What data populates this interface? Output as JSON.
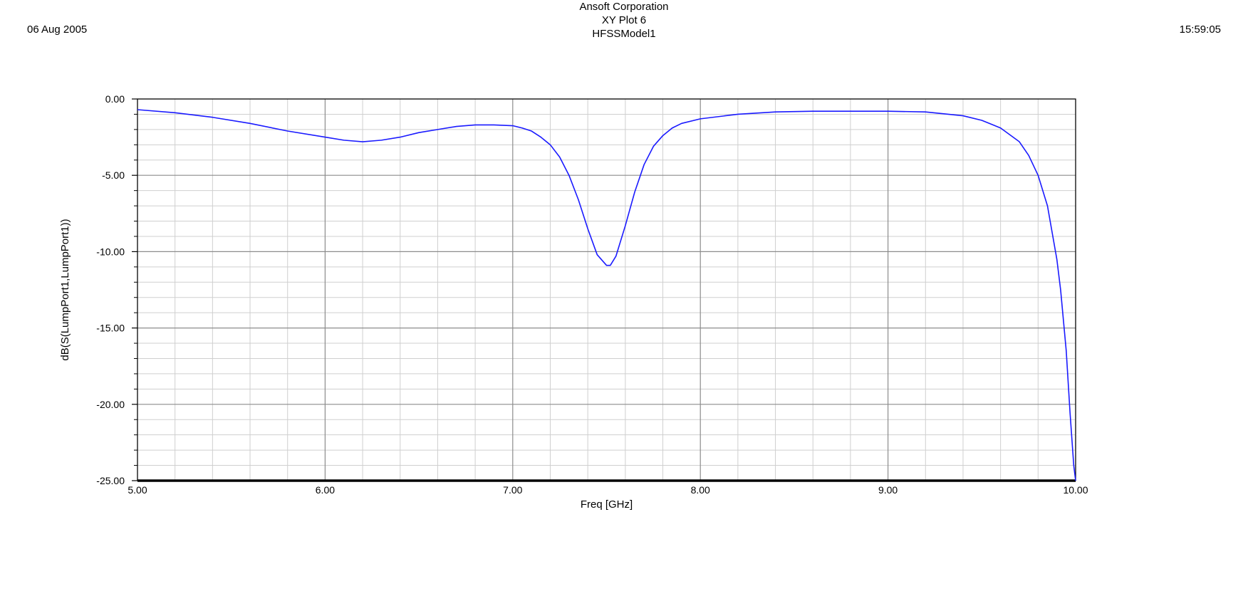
{
  "header": {
    "date": "06 Aug 2005",
    "time": "15:59:05",
    "company": "Ansoft Corporation",
    "plot_name": "XY Plot 6",
    "model_name": "HFSSModel1"
  },
  "chart_data": {
    "type": "line",
    "title": "XY Plot 6",
    "xlabel": "Freq [GHz]",
    "ylabel": "dB(S(LumpPort1,LumpPort1))",
    "xlim": [
      5.0,
      10.0
    ],
    "ylim": [
      -25.0,
      0.0
    ],
    "x_ticks": [
      "5.00",
      "6.00",
      "7.00",
      "8.00",
      "9.00",
      "10.00"
    ],
    "y_ticks": [
      "0.00",
      "-5.00",
      "-10.00",
      "-15.00",
      "-20.00",
      "-25.00"
    ],
    "grid": true,
    "line_color": "#1a1aff",
    "series": [
      {
        "x": [
          5.0,
          5.2,
          5.4,
          5.6,
          5.8,
          6.0,
          6.1,
          6.2,
          6.3,
          6.4,
          6.5,
          6.6,
          6.7,
          6.8,
          6.9,
          7.0,
          7.05,
          7.1,
          7.15,
          7.2,
          7.25,
          7.3,
          7.35,
          7.4,
          7.45,
          7.5,
          7.52,
          7.55,
          7.6,
          7.65,
          7.7,
          7.75,
          7.8,
          7.85,
          7.9,
          8.0,
          8.2,
          8.4,
          8.6,
          8.8,
          9.0,
          9.2,
          9.4,
          9.5,
          9.6,
          9.7,
          9.75,
          9.8,
          9.85,
          9.9,
          9.92,
          9.95,
          9.97,
          9.99,
          10.0
        ],
        "y": [
          -0.7,
          -0.9,
          -1.2,
          -1.6,
          -2.1,
          -2.5,
          -2.7,
          -2.8,
          -2.7,
          -2.5,
          -2.2,
          -2.0,
          -1.8,
          -1.7,
          -1.7,
          -1.75,
          -1.9,
          -2.1,
          -2.5,
          -3.0,
          -3.8,
          -5.0,
          -6.6,
          -8.5,
          -10.2,
          -10.9,
          -10.9,
          -10.3,
          -8.3,
          -6.1,
          -4.3,
          -3.1,
          -2.4,
          -1.9,
          -1.6,
          -1.3,
          -1.0,
          -0.85,
          -0.8,
          -0.8,
          -0.8,
          -0.85,
          -1.1,
          -1.4,
          -1.9,
          -2.8,
          -3.7,
          -5.0,
          -7.0,
          -10.5,
          -12.5,
          -16.5,
          -20.5,
          -24.0,
          -25.0
        ]
      }
    ]
  }
}
